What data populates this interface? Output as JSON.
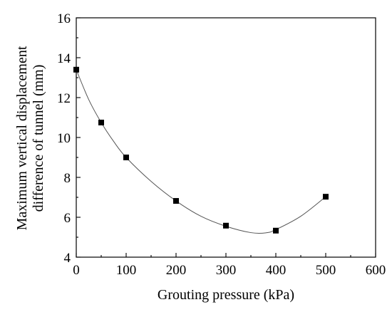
{
  "chart_data": {
    "type": "scatter",
    "title": "",
    "xlabel": "Grouting pressure (kPa)",
    "ylabel_lines": [
      "Maximum vertical displacement",
      "difference of tunnel (mm)"
    ],
    "xlim": [
      0,
      600
    ],
    "ylim": [
      4,
      16
    ],
    "xticks": [
      0,
      100,
      200,
      300,
      400,
      500,
      600
    ],
    "yticks": [
      4,
      6,
      8,
      10,
      12,
      14,
      16
    ],
    "grid": false,
    "legend": "none",
    "series": [
      {
        "marker": "square",
        "color": "#000000",
        "x": [
          0,
          50,
          100,
          200,
          300,
          400,
          500
        ],
        "y": [
          13.4,
          10.75,
          9.0,
          6.82,
          5.58,
          5.33,
          7.03
        ]
      }
    ],
    "fit_curve": {
      "color": "#555555",
      "x": [
        0,
        25,
        50,
        75,
        100,
        150,
        200,
        250,
        300,
        350,
        380,
        400,
        450,
        500
      ],
      "y": [
        13.4,
        11.9,
        10.75,
        9.8,
        9.0,
        7.8,
        6.82,
        6.05,
        5.55,
        5.23,
        5.22,
        5.38,
        6.05,
        7.03
      ]
    }
  }
}
